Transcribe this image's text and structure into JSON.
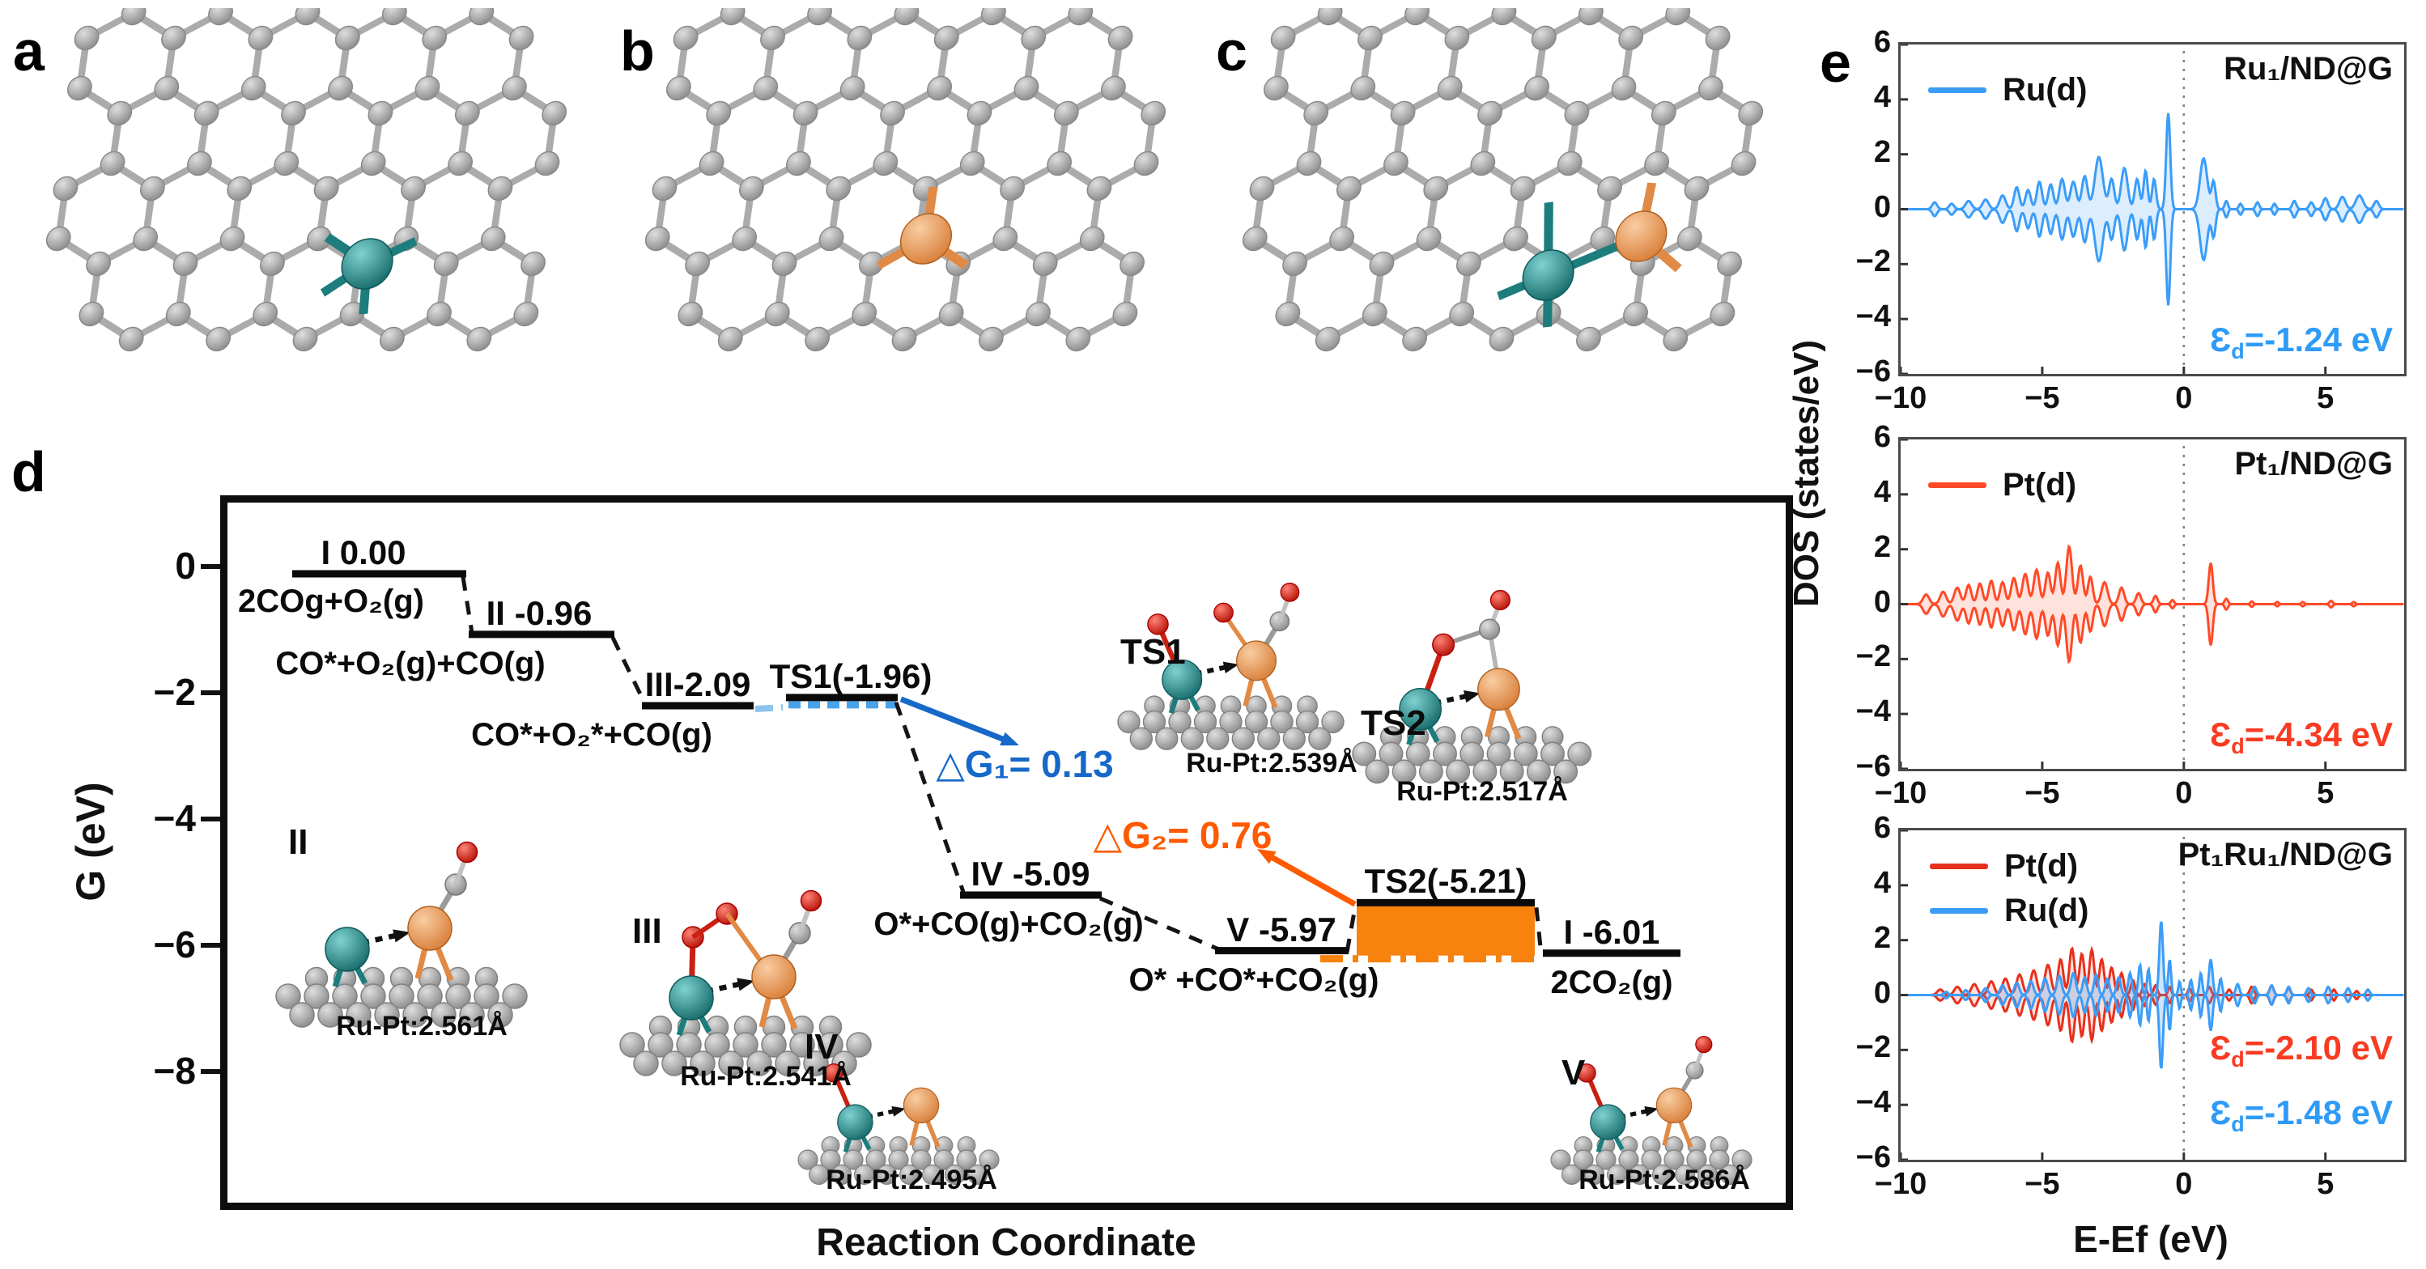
{
  "panel_labels": {
    "a": "a",
    "b": "b",
    "c": "c",
    "d": "d",
    "e": "e"
  },
  "colors": {
    "ru_teal": "#227f7f",
    "pt_orange": "#ec9a5e",
    "carbon_gray": "#9f9f9f",
    "oxygen_red": "#de2114",
    "blue_accent": "#1668c9",
    "orange_accent": "#f8820e",
    "dos_blue": "#3b9df8",
    "dos_red": "#ff4a28",
    "dos_red_deep": "#e8301c"
  },
  "panel_a": {
    "dopants": [
      "Ru"
    ]
  },
  "panel_b": {
    "dopants": [
      "Pt"
    ]
  },
  "panel_c": {
    "dopants": [
      "Ru",
      "Pt"
    ]
  },
  "panel_d": {
    "ylabel": "G (eV)",
    "xlabel": "Reaction Coordinate",
    "yticks": [
      "0",
      "−2",
      "−4",
      "−6",
      "−8"
    ]
  },
  "panel_e": {
    "ylabel": "DOS  (states/eV)",
    "xlabel": "E-Ef (eV)"
  },
  "chart_data": [
    {
      "id": "energy_diagram",
      "type": "line",
      "xlabel": "Reaction Coordinate",
      "ylabel": "G (eV)",
      "ylim": [
        1.1,
        -10.2
      ],
      "yticks": [
        0,
        -2,
        -4,
        -6,
        -8
      ],
      "levels": [
        {
          "id": "I",
          "label": "I 0.00",
          "energy": 0.0,
          "species": "2COg+O₂(g)"
        },
        {
          "id": "II",
          "label": "II -0.96",
          "energy": -0.96,
          "species": "CO*+O₂(g)+CO(g)"
        },
        {
          "id": "III",
          "label": "III-2.09",
          "energy": -2.09,
          "species": "CO*+O₂*+CO(g)"
        },
        {
          "id": "TS1",
          "label": "TS1(-1.96)",
          "energy": -1.96,
          "species": ""
        },
        {
          "id": "IV",
          "label": "IV -5.09",
          "energy": -5.09,
          "species": "O*+CO(g)+CO₂(g)"
        },
        {
          "id": "V",
          "label": "V -5.97",
          "energy": -5.97,
          "species": "O* +CO*+CO₂(g)"
        },
        {
          "id": "TS2",
          "label": "TS2(-5.21)",
          "energy": -5.21,
          "species": ""
        },
        {
          "id": "I2",
          "label": "I -6.01",
          "energy": -6.01,
          "species": "2CO₂(g)"
        }
      ],
      "annotations": [
        {
          "id": "dG1",
          "text": "△G₁= 0.13",
          "value": 0.13,
          "color": "#1668c9"
        },
        {
          "id": "dG2",
          "text": "△G₂= 0.76",
          "value": 0.76,
          "color": "#fe5a00"
        }
      ],
      "structures": [
        {
          "id": "II",
          "label": "II",
          "distance": "Ru-Pt:2.561Å"
        },
        {
          "id": "III",
          "label": "III",
          "distance": "Ru-Pt:2.541Å"
        },
        {
          "id": "IV",
          "label": "IV",
          "distance": "Ru-Pt:2.495Å"
        },
        {
          "id": "V",
          "label": "V",
          "distance": "Ru-Pt:2.586Å"
        },
        {
          "id": "TS1",
          "label": "TS1",
          "distance": "Ru-Pt:2.539Å"
        },
        {
          "id": "TS2",
          "label": "TS2",
          "distance": "Ru-Pt:2.517Å"
        }
      ]
    },
    {
      "id": "dos_ru",
      "type": "area",
      "title": "Ru₁/ND@G",
      "xlim": [
        -10,
        7.78
      ],
      "ylim": [
        -6,
        6
      ],
      "xticks": [
        -10,
        -5,
        0,
        5
      ],
      "yticks": [
        6,
        4,
        2,
        0,
        -2,
        -4,
        -6
      ],
      "fermi_x": 0,
      "ed": [
        {
          "symbol": "Ɛ",
          "sub": "d",
          "text": "=-1.24 eV",
          "color": "#2e9bf7"
        }
      ],
      "series": [
        {
          "name": "Ru(d)",
          "color": "#3b9df8",
          "fill": "rgba(59,157,248,0.18)",
          "peaks": [
            [
              -8.8,
              0.12,
              0.25
            ],
            [
              -8.2,
              0.12,
              0.2
            ],
            [
              -7.6,
              0.15,
              0.3
            ],
            [
              -7.0,
              0.15,
              0.35
            ],
            [
              -6.4,
              0.15,
              0.5
            ],
            [
              -5.9,
              0.13,
              0.8
            ],
            [
              -5.5,
              0.13,
              0.7
            ],
            [
              -5.1,
              0.13,
              1.0
            ],
            [
              -4.7,
              0.13,
              0.9
            ],
            [
              -4.3,
              0.14,
              1.1
            ],
            [
              -3.9,
              0.15,
              1.0
            ],
            [
              -3.5,
              0.14,
              1.2
            ],
            [
              -3.0,
              0.2,
              1.9
            ],
            [
              -2.55,
              0.13,
              1.1
            ],
            [
              -2.1,
              0.16,
              1.5
            ],
            [
              -1.65,
              0.12,
              1.1
            ],
            [
              -1.35,
              0.1,
              1.4
            ],
            [
              -1.05,
              0.1,
              1.1
            ],
            [
              -0.55,
              0.1,
              3.5
            ],
            [
              0.7,
              0.18,
              1.85
            ],
            [
              1.05,
              0.1,
              1.0
            ],
            [
              1.5,
              0.08,
              0.3
            ],
            [
              2.0,
              0.08,
              0.2
            ],
            [
              2.6,
              0.09,
              0.25
            ],
            [
              3.2,
              0.08,
              0.2
            ],
            [
              3.9,
              0.1,
              0.3
            ],
            [
              4.5,
              0.1,
              0.25
            ],
            [
              5.0,
              0.12,
              0.4
            ],
            [
              5.6,
              0.15,
              0.45
            ],
            [
              6.2,
              0.18,
              0.5
            ],
            [
              6.8,
              0.12,
              0.3
            ]
          ]
        }
      ]
    },
    {
      "id": "dos_pt",
      "type": "area",
      "title": "Pt₁/ND@G",
      "xlim": [
        -10,
        7.78
      ],
      "ylim": [
        -6,
        6
      ],
      "xticks": [
        -10,
        -5,
        0,
        5
      ],
      "yticks": [
        6,
        4,
        2,
        0,
        -2,
        -4,
        -6
      ],
      "fermi_x": 0,
      "ed": [
        {
          "symbol": "Ɛ",
          "sub": "d",
          "text": "=-4.34 eV",
          "color": "#f93b22"
        }
      ],
      "series": [
        {
          "name": "Pt(d)",
          "color": "#ff4a28",
          "fill": "rgba(255,74,40,0.16)",
          "peaks": [
            [
              -9.1,
              0.15,
              0.35
            ],
            [
              -8.5,
              0.15,
              0.45
            ],
            [
              -8.0,
              0.15,
              0.6
            ],
            [
              -7.6,
              0.13,
              0.7
            ],
            [
              -7.2,
              0.13,
              0.75
            ],
            [
              -6.8,
              0.13,
              0.85
            ],
            [
              -6.4,
              0.13,
              0.8
            ],
            [
              -6.0,
              0.14,
              0.95
            ],
            [
              -5.6,
              0.14,
              1.1
            ],
            [
              -5.2,
              0.14,
              1.25
            ],
            [
              -4.8,
              0.13,
              1.15
            ],
            [
              -4.45,
              0.13,
              1.5
            ],
            [
              -4.05,
              0.14,
              2.1
            ],
            [
              -3.65,
              0.13,
              1.4
            ],
            [
              -3.3,
              0.12,
              1.0
            ],
            [
              -2.8,
              0.15,
              0.8
            ],
            [
              -2.2,
              0.13,
              0.6
            ],
            [
              -1.6,
              0.12,
              0.4
            ],
            [
              -1.0,
              0.1,
              0.3
            ],
            [
              -0.4,
              0.08,
              0.15
            ],
            [
              0.95,
              0.1,
              1.5
            ],
            [
              1.5,
              0.08,
              0.2
            ],
            [
              2.4,
              0.07,
              0.1
            ],
            [
              3.3,
              0.07,
              0.08
            ],
            [
              4.2,
              0.07,
              0.08
            ],
            [
              5.2,
              0.08,
              0.12
            ],
            [
              6.0,
              0.07,
              0.08
            ]
          ]
        }
      ]
    },
    {
      "id": "dos_ptru",
      "type": "area",
      "title": "Pt₁Ru₁/ND@G",
      "xaxis_label": "E-Ef (eV)",
      "xlim": [
        -10,
        7.78
      ],
      "ylim": [
        -6,
        6
      ],
      "xticks": [
        -10,
        -5,
        0,
        5
      ],
      "yticks": [
        6,
        4,
        2,
        0,
        -2,
        -4,
        -6
      ],
      "fermi_x": 0,
      "ed": [
        {
          "symbol": "Ɛ",
          "sub": "d",
          "text": "=-2.10 eV",
          "color": "#f93b22"
        },
        {
          "symbol": "Ɛ",
          "sub": "d",
          "text": "=-1.48 eV",
          "color": "#2e9bf7"
        }
      ],
      "series": [
        {
          "name": "Pt(d)",
          "color": "#e8301c",
          "fill": "rgba(232,48,28,0.15)",
          "peaks": [
            [
              -8.6,
              0.15,
              0.2
            ],
            [
              -8.0,
              0.15,
              0.3
            ],
            [
              -7.4,
              0.15,
              0.4
            ],
            [
              -6.8,
              0.15,
              0.5
            ],
            [
              -6.3,
              0.15,
              0.6
            ],
            [
              -5.8,
              0.15,
              0.75
            ],
            [
              -5.3,
              0.15,
              0.9
            ],
            [
              -4.8,
              0.15,
              1.1
            ],
            [
              -4.35,
              0.13,
              1.3
            ],
            [
              -3.95,
              0.13,
              1.7
            ],
            [
              -3.6,
              0.12,
              1.5
            ],
            [
              -3.25,
              0.12,
              1.65
            ],
            [
              -2.9,
              0.12,
              1.3
            ],
            [
              -2.55,
              0.12,
              1.0
            ],
            [
              -2.2,
              0.11,
              0.8
            ],
            [
              -1.8,
              0.1,
              0.55
            ],
            [
              -1.4,
              0.09,
              0.4
            ],
            [
              -1.0,
              0.09,
              0.35
            ],
            [
              -0.5,
              0.08,
              0.3
            ],
            [
              0.2,
              0.08,
              0.25
            ],
            [
              0.9,
              0.09,
              0.3
            ],
            [
              1.6,
              0.09,
              0.2
            ],
            [
              2.4,
              0.1,
              0.3
            ],
            [
              3.1,
              0.1,
              0.35
            ],
            [
              3.7,
              0.09,
              0.25
            ],
            [
              4.5,
              0.08,
              0.2
            ],
            [
              5.3,
              0.08,
              0.2
            ],
            [
              6.1,
              0.08,
              0.15
            ]
          ]
        },
        {
          "name": "Ru(d)",
          "color": "#3b9df8",
          "fill": "rgba(59,157,248,0.25)",
          "peaks": [
            [
              -8.4,
              0.1,
              0.12
            ],
            [
              -7.7,
              0.1,
              0.18
            ],
            [
              -7.0,
              0.12,
              0.25
            ],
            [
              -6.4,
              0.12,
              0.35
            ],
            [
              -5.9,
              0.12,
              0.45
            ],
            [
              -5.4,
              0.12,
              0.5
            ],
            [
              -4.9,
              0.12,
              0.6
            ],
            [
              -4.4,
              0.12,
              0.7
            ],
            [
              -3.9,
              0.12,
              0.8
            ],
            [
              -3.5,
              0.1,
              0.65
            ],
            [
              -3.1,
              0.1,
              0.75
            ],
            [
              -2.7,
              0.1,
              0.6
            ],
            [
              -2.3,
              0.1,
              0.65
            ],
            [
              -1.9,
              0.09,
              0.8
            ],
            [
              -1.55,
              0.08,
              1.1
            ],
            [
              -1.25,
              0.07,
              0.95
            ],
            [
              -0.8,
              0.09,
              2.7
            ],
            [
              -0.5,
              0.07,
              1.3
            ],
            [
              -0.15,
              0.06,
              0.5
            ],
            [
              0.25,
              0.07,
              0.55
            ],
            [
              0.6,
              0.07,
              0.8
            ],
            [
              0.95,
              0.09,
              1.3
            ],
            [
              1.3,
              0.07,
              0.6
            ],
            [
              1.9,
              0.09,
              0.4
            ],
            [
              2.5,
              0.09,
              0.3
            ],
            [
              3.1,
              0.09,
              0.35
            ],
            [
              3.7,
              0.09,
              0.3
            ],
            [
              4.4,
              0.09,
              0.25
            ],
            [
              5.1,
              0.09,
              0.3
            ],
            [
              5.8,
              0.09,
              0.25
            ],
            [
              6.5,
              0.09,
              0.2
            ]
          ]
        }
      ]
    }
  ]
}
